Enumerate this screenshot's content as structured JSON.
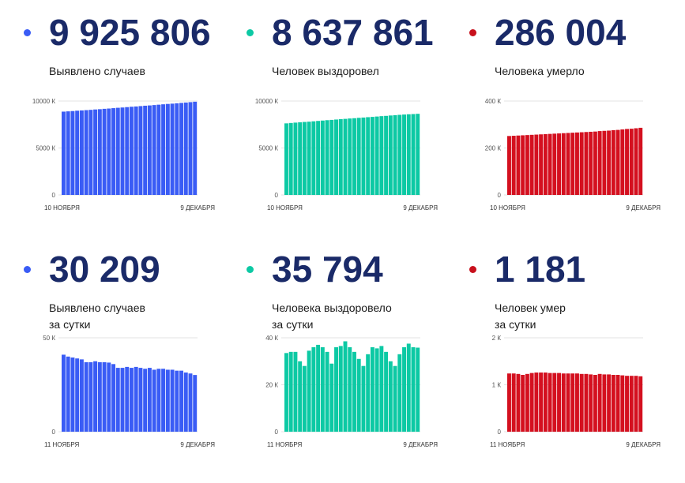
{
  "colors": {
    "blue": "#3a5cf5",
    "teal": "#0cc9a4",
    "red": "#d4101f",
    "dot_blue": "#3a5cf5",
    "dot_teal": "#0cc9a4",
    "dot_red": "#c8101c"
  },
  "panels": [
    {
      "value": "9 925 806",
      "label_line1": "Выявлено случаев",
      "label_line2": "",
      "color": "#3a5cf5",
      "chart_data": {
        "type": "bar",
        "yticks": [
          "10000 К",
          "5000 К",
          "0"
        ],
        "ytick_values": [
          10000,
          5000,
          0
        ],
        "ylim": [
          0,
          10000
        ],
        "x_start_label": "10 НОЯБРЯ",
        "x_end_label": "9 ДЕКАБРЯ",
        "values": [
          8870,
          8900,
          8930,
          8970,
          9000,
          9030,
          9060,
          9100,
          9130,
          9170,
          9200,
          9240,
          9280,
          9310,
          9350,
          9390,
          9420,
          9460,
          9500,
          9530,
          9570,
          9610,
          9650,
          9690,
          9720,
          9760,
          9800,
          9840,
          9880,
          9926
        ]
      }
    },
    {
      "value": "8 637 861",
      "label_line1": "Человек выздоровел",
      "label_line2": "",
      "color": "#0cc9a4",
      "chart_data": {
        "type": "bar",
        "yticks": [
          "10000 К",
          "5000 К",
          "0"
        ],
        "ytick_values": [
          10000,
          5000,
          0
        ],
        "ylim": [
          0,
          10000
        ],
        "x_start_label": "10 НОЯБРЯ",
        "x_end_label": "9 ДЕКАБРЯ",
        "values": [
          7620,
          7660,
          7700,
          7740,
          7770,
          7800,
          7840,
          7880,
          7920,
          7960,
          7990,
          8030,
          8070,
          8100,
          8140,
          8170,
          8210,
          8240,
          8280,
          8310,
          8350,
          8390,
          8420,
          8460,
          8490,
          8530,
          8560,
          8590,
          8610,
          8638
        ]
      }
    },
    {
      "value": "286 004",
      "label_line1": "Человека умерло",
      "label_line2": "",
      "color": "#d4101f",
      "chart_data": {
        "type": "bar",
        "yticks": [
          "400 К",
          "200 К",
          "0"
        ],
        "ytick_values": [
          400,
          200,
          0
        ],
        "ylim": [
          0,
          400
        ],
        "x_start_label": "10 НОЯБРЯ",
        "x_end_label": "9 ДЕКАБРЯ",
        "values": [
          251,
          252,
          253,
          254,
          255,
          256,
          257,
          258,
          259,
          260,
          261,
          262,
          263,
          264,
          265,
          266,
          267,
          268,
          269,
          270,
          272,
          273,
          274,
          276,
          277,
          279,
          281,
          282,
          284,
          286
        ]
      }
    },
    {
      "value": "30 209",
      "label_line1": "Выявлено случаев",
      "label_line2": "за сутки",
      "color": "#3a5cf5",
      "chart_data": {
        "type": "bar",
        "yticks": [
          "50 К",
          "0"
        ],
        "ytick_values": [
          50,
          0
        ],
        "ylim": [
          0,
          50
        ],
        "x_start_label": "11 НОЯБРЯ",
        "x_end_label": "9 ДЕКАБРЯ",
        "values": [
          41,
          40,
          39.5,
          39,
          38.5,
          37,
          37,
          37.5,
          37,
          37,
          36.8,
          36,
          34,
          34,
          34.5,
          34,
          34.5,
          34,
          33.5,
          34,
          33,
          33.5,
          33.5,
          33,
          33,
          32.5,
          32.5,
          31.5,
          31,
          30.2
        ]
      }
    },
    {
      "value": "35 794",
      "label_line1": "Человека выздоровело",
      "label_line2": "за сутки",
      "color": "#0cc9a4",
      "chart_data": {
        "type": "bar",
        "yticks": [
          "40 К",
          "20 К",
          "0"
        ],
        "ytick_values": [
          40,
          20,
          0
        ],
        "ylim": [
          0,
          40
        ],
        "x_start_label": "11 НОЯБРЯ",
        "x_end_label": "9 ДЕКАБРЯ",
        "values": [
          33.5,
          34,
          34,
          30,
          28,
          34.5,
          36,
          37,
          36,
          34,
          29,
          36,
          36.5,
          38.5,
          36,
          34,
          31,
          28,
          33,
          36,
          35.5,
          36.5,
          34,
          30,
          28,
          33,
          36,
          37.5,
          36,
          35.8
        ]
      }
    },
    {
      "value": "1 181",
      "label_line1": "Человек умер",
      "label_line2": "за сутки",
      "color": "#d4101f",
      "chart_data": {
        "type": "bar",
        "yticks": [
          "2 К",
          "1 К",
          "0"
        ],
        "ytick_values": [
          2,
          1,
          0
        ],
        "ylim": [
          0,
          2
        ],
        "x_start_label": "11 НОЯБРЯ",
        "x_end_label": "9 ДЕКАБРЯ",
        "values": [
          1.24,
          1.24,
          1.23,
          1.21,
          1.23,
          1.25,
          1.26,
          1.26,
          1.26,
          1.25,
          1.25,
          1.25,
          1.24,
          1.24,
          1.24,
          1.24,
          1.23,
          1.23,
          1.22,
          1.21,
          1.23,
          1.22,
          1.22,
          1.21,
          1.21,
          1.2,
          1.19,
          1.19,
          1.19,
          1.18
        ]
      }
    }
  ]
}
